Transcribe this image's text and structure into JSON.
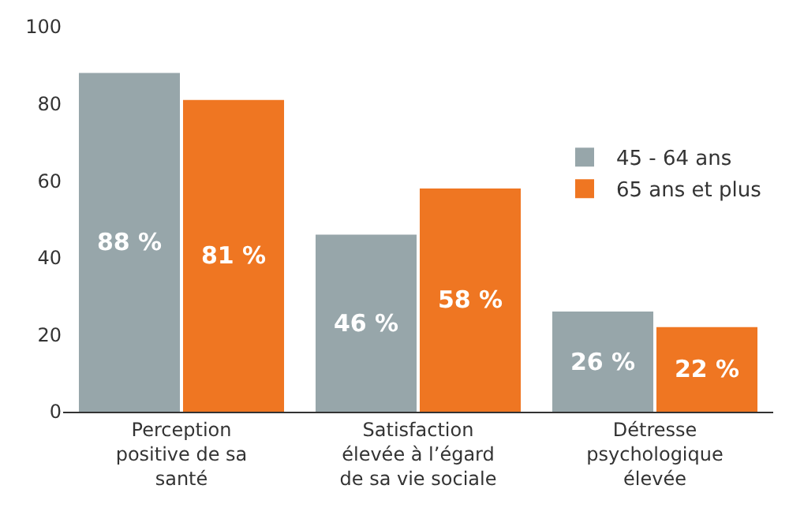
{
  "chart_data": {
    "type": "bar",
    "categories": [
      "Perception positive de sa santé",
      "Satisfaction élevée à l’égard de sa vie sociale",
      "Détresse psychologique élevée"
    ],
    "series": [
      {
        "name": "45 - 64 ans",
        "color": "#97a6aa",
        "values": [
          88,
          46,
          26
        ],
        "value_labels": [
          "88 %",
          "46 %",
          "26 %"
        ]
      },
      {
        "name": "65 ans et plus",
        "color": "#ef7622",
        "values": [
          81,
          58,
          22
        ],
        "value_labels": [
          "81 %",
          "58 %",
          "22 %"
        ]
      }
    ],
    "ylim": [
      0,
      100
    ],
    "yticks": [
      0,
      20,
      40,
      60,
      80,
      100
    ],
    "legend": "right"
  }
}
